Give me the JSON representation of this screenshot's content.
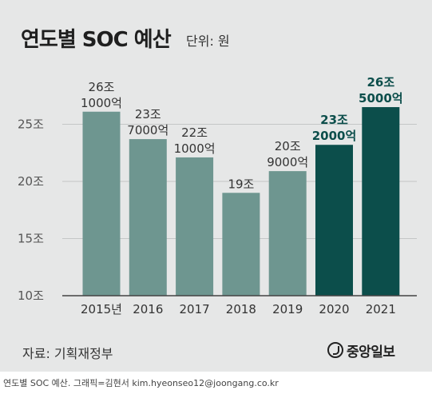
{
  "header": {
    "title": "연도별 SOC 예산",
    "unit": "단위: 원"
  },
  "footer": {
    "source": "자료: 기획재정부",
    "logo_text": "중앙일보"
  },
  "caption": "연도별 SOC 예산. 그래픽=김현서 kim.hyeonseo12@joongang.co.kr",
  "colors": {
    "background": "#e6e7e7",
    "bar_past": "#6e9690",
    "bar_recent": "#0c4e4b",
    "label_recent": "#0c4e4b",
    "label_past": "#333333"
  },
  "chart_data": {
    "type": "bar",
    "categories": [
      "2015년",
      "2016",
      "2017",
      "2018",
      "2019",
      "2020",
      "2021"
    ],
    "values": [
      26.1,
      23.7,
      22.1,
      19,
      20.9,
      23.2,
      26.5
    ],
    "value_labels": [
      [
        "26조",
        "1000억"
      ],
      [
        "23조",
        "7000억"
      ],
      [
        "22조",
        "1000억"
      ],
      [
        "19조"
      ],
      [
        "20조",
        "9000억"
      ],
      [
        "23조",
        "2000억"
      ],
      [
        "26조",
        "5000억"
      ]
    ],
    "highlighted": [
      false,
      false,
      false,
      false,
      false,
      true,
      true
    ],
    "y_ticks": [
      10,
      15,
      20,
      25
    ],
    "y_tick_labels": [
      "10조",
      "15조",
      "20조",
      "25조"
    ],
    "ylim": [
      10,
      28.6
    ],
    "grid": true,
    "title": "연도별 SOC 예산",
    "ylabel": "",
    "xlabel": ""
  }
}
